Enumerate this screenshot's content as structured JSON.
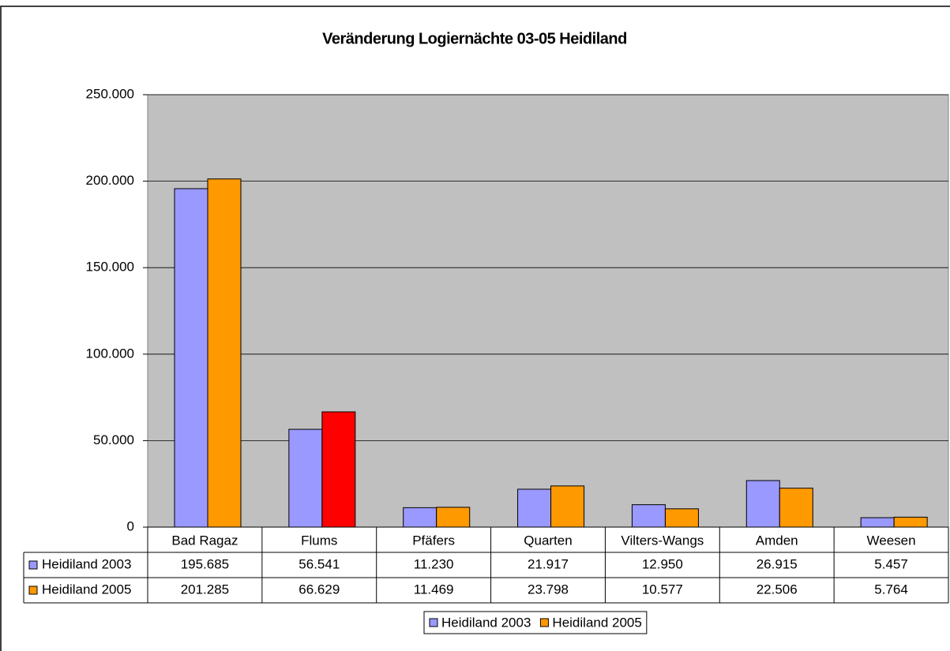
{
  "chart_data": {
    "type": "bar",
    "title": "Veränderung Logiernächte 03-05 Heidiland",
    "categories": [
      "Bad Ragaz",
      "Flums",
      "Pfäfers",
      "Quarten",
      "Vilters-Wangs",
      "Amden",
      "Weesen"
    ],
    "series": [
      {
        "name": "Heidiland 2003",
        "color": "#9999ff",
        "values": [
          195685,
          56541,
          11230,
          21917,
          12950,
          26915,
          5457
        ],
        "value_labels": [
          "195.685",
          "56.541",
          "11.230",
          "21.917",
          "12.950",
          "26.915",
          "5.457"
        ]
      },
      {
        "name": "Heidiland 2005",
        "color": "#ff9900",
        "highlight": {
          "index": 1,
          "color": "#ff0000"
        },
        "values": [
          201285,
          66629,
          11469,
          23798,
          10577,
          22506,
          5764
        ],
        "value_labels": [
          "201.285",
          "66.629",
          "11.469",
          "23.798",
          "10.577",
          "22.506",
          "5.764"
        ]
      }
    ],
    "ylim": [
      0,
      250000
    ],
    "yticks": [
      0,
      {
        "value": 50000,
        "label": "50.000"
      },
      {
        "value": 100000,
        "label": "100.000"
      },
      {
        "value": 150000,
        "label": "150.000"
      },
      {
        "value": 200000,
        "label": "200.000"
      },
      {
        "value": 250000,
        "label": "250.000"
      }
    ],
    "grid": true,
    "plot_background": "#c0c0c0",
    "legend": "bottom"
  }
}
